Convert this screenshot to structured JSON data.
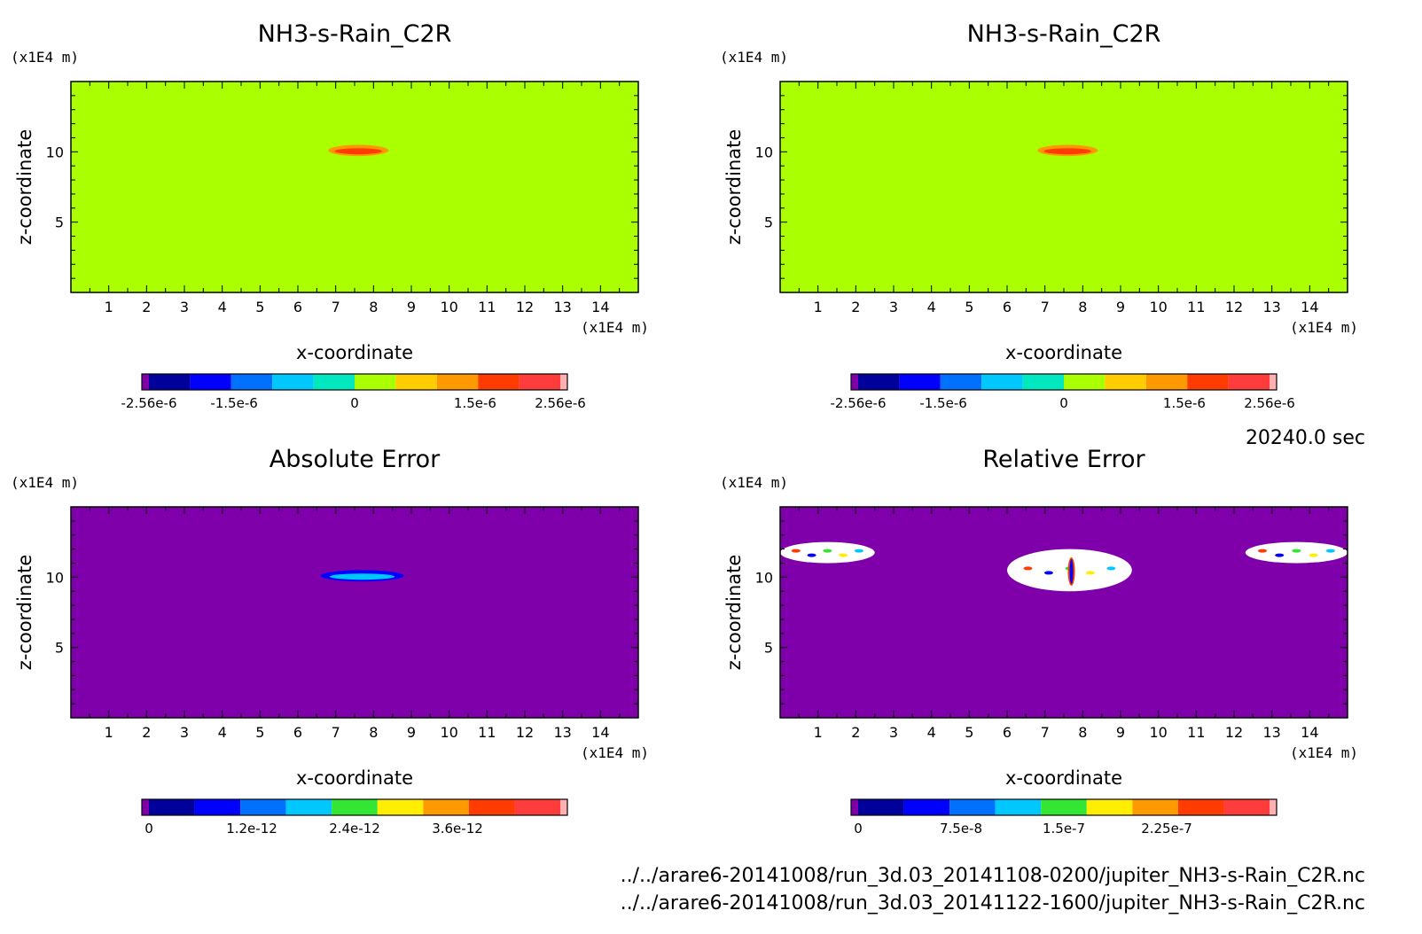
{
  "time_label": "20240.0 sec",
  "footer": {
    "line1": "../../arare6-20141008/run_3d.03_20141108-0200/jupiter_NH3-s-Rain_C2R.nc",
    "line2": "../../arare6-20141008/run_3d.03_20141122-1600/jupiter_NH3-s-Rain_C2R.nc"
  },
  "colors": {
    "background_top": "#aaff00",
    "background_bottom": "#7f00aa",
    "colorbar_levels": [
      "#7f00aa",
      "#00009a",
      "#0000ff",
      "#0070ff",
      "#00c8ff",
      "#00e8c0",
      "#33e633",
      "#ffee00",
      "#ff9900",
      "#ff3c00",
      "#ff3c3c",
      "#ffb0b0"
    ]
  },
  "chart_data": [
    {
      "type": "heatmap",
      "title": "NH3-s-Rain_C2R",
      "xlabel": "x-coordinate",
      "ylabel": "z-coordinate",
      "x_unit": "(x1E4 m)",
      "y_unit": "(x1E4 m)",
      "xlim": [
        0,
        15
      ],
      "ylim": [
        0,
        15
      ],
      "x_ticks": [
        "1",
        "2",
        "3",
        "4",
        "5",
        "6",
        "7",
        "8",
        "9",
        "10",
        "11",
        "12",
        "13",
        "14"
      ],
      "y_ticks": [
        "5",
        "10"
      ],
      "background": "#aaff00",
      "features": [
        {
          "x": [
            6.8,
            8.4
          ],
          "z": [
            9.7,
            10.5
          ],
          "colors": [
            "#ff9900",
            "#ff3c00"
          ]
        }
      ],
      "colorbar": {
        "colors": [
          "#7f00aa",
          "#00009a",
          "#0000ff",
          "#0070ff",
          "#00c8ff",
          "#00e8c0",
          "#aaff00",
          "#ffcc00",
          "#ff9900",
          "#ff3c00",
          "#ff3c3c",
          "#ffb0b0"
        ],
        "labels": [
          "-2.56e-6",
          "-1.5e-6",
          "0",
          "1.5e-6",
          "2.56e-6"
        ],
        "label_values": [
          -2.56e-06,
          -1.5e-06,
          0,
          1.5e-06,
          2.56e-06
        ],
        "range": [
          -2.56e-06,
          2.56e-06
        ]
      }
    },
    {
      "type": "heatmap",
      "title": "NH3-s-Rain_C2R",
      "xlabel": "x-coordinate",
      "ylabel": "z-coordinate",
      "x_unit": "(x1E4 m)",
      "y_unit": "(x1E4 m)",
      "xlim": [
        0,
        15
      ],
      "ylim": [
        0,
        15
      ],
      "x_ticks": [
        "1",
        "2",
        "3",
        "4",
        "5",
        "6",
        "7",
        "8",
        "9",
        "10",
        "11",
        "12",
        "13",
        "14"
      ],
      "y_ticks": [
        "5",
        "10"
      ],
      "background": "#aaff00",
      "features": [
        {
          "x": [
            6.8,
            8.4
          ],
          "z": [
            9.7,
            10.5
          ],
          "colors": [
            "#ff9900",
            "#ff3c00"
          ]
        }
      ],
      "colorbar": {
        "colors": [
          "#7f00aa",
          "#00009a",
          "#0000ff",
          "#0070ff",
          "#00c8ff",
          "#00e8c0",
          "#aaff00",
          "#ffcc00",
          "#ff9900",
          "#ff3c00",
          "#ff3c3c",
          "#ffb0b0"
        ],
        "labels": [
          "-2.56e-6",
          "-1.5e-6",
          "0",
          "1.5e-6",
          "2.56e-6"
        ],
        "label_values": [
          -2.56e-06,
          -1.5e-06,
          0,
          1.5e-06,
          2.56e-06
        ],
        "range": [
          -2.56e-06,
          2.56e-06
        ]
      }
    },
    {
      "type": "heatmap",
      "title": "Absolute Error",
      "xlabel": "x-coordinate",
      "ylabel": "z-coordinate",
      "x_unit": "(x1E4 m)",
      "y_unit": "(x1E4 m)",
      "xlim": [
        0,
        15
      ],
      "ylim": [
        0,
        15
      ],
      "x_ticks": [
        "1",
        "2",
        "3",
        "4",
        "5",
        "6",
        "7",
        "8",
        "9",
        "10",
        "11",
        "12",
        "13",
        "14"
      ],
      "y_ticks": [
        "5",
        "10"
      ],
      "background": "#7f00aa",
      "features": [
        {
          "x": [
            6.6,
            8.8
          ],
          "z": [
            9.7,
            10.5
          ],
          "colors": [
            "#0000ff",
            "#00c8ff"
          ]
        }
      ],
      "colorbar": {
        "colors": [
          "#7f00aa",
          "#00009a",
          "#0000ff",
          "#0070ff",
          "#00c8ff",
          "#33e633",
          "#ffee00",
          "#ff9900",
          "#ff3c00",
          "#ff3c3c",
          "#ffb0b0"
        ],
        "labels": [
          "0",
          "1.2e-12",
          "2.4e-12",
          "3.6e-12"
        ],
        "label_values": [
          0,
          1.2e-12,
          2.4e-12,
          3.6e-12
        ],
        "range": [
          0,
          4.8e-12
        ]
      }
    },
    {
      "type": "heatmap",
      "title": "Relative Error",
      "xlabel": "x-coordinate",
      "ylabel": "z-coordinate",
      "x_unit": "(x1E4 m)",
      "y_unit": "(x1E4 m)",
      "xlim": [
        0,
        15
      ],
      "ylim": [
        0,
        15
      ],
      "x_ticks": [
        "1",
        "2",
        "3",
        "4",
        "5",
        "6",
        "7",
        "8",
        "9",
        "10",
        "11",
        "12",
        "13",
        "14"
      ],
      "y_ticks": [
        "5",
        "10"
      ],
      "background": "#7f00aa",
      "features": [
        {
          "x": [
            0,
            2.5
          ],
          "z": [
            11.0,
            12.5
          ],
          "colors": [
            "#ffffff"
          ]
        },
        {
          "x": [
            6.0,
            9.3
          ],
          "z": [
            9.0,
            12.0
          ],
          "colors": [
            "#ffffff"
          ]
        },
        {
          "x": [
            12.3,
            15.0
          ],
          "z": [
            11.0,
            12.5
          ],
          "colors": [
            "#ffffff"
          ]
        }
      ],
      "colorbar": {
        "colors": [
          "#7f00aa",
          "#00009a",
          "#0000ff",
          "#0070ff",
          "#00c8ff",
          "#33e633",
          "#ffee00",
          "#ff9900",
          "#ff3c00",
          "#ff3c3c",
          "#ffb0b0"
        ],
        "labels": [
          "0",
          "7.5e-8",
          "1.5e-7",
          "2.25e-7"
        ],
        "label_values": [
          0,
          7.5e-08,
          1.5e-07,
          2.25e-07
        ],
        "range": [
          0,
          3e-07
        ]
      }
    }
  ]
}
